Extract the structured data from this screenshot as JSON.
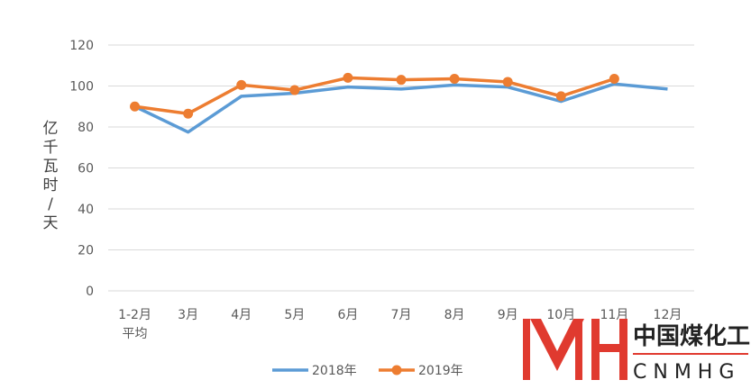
{
  "chart_data": {
    "type": "line",
    "categories": [
      "1-2月\n平均",
      "3月",
      "4月",
      "5月",
      "6月",
      "7月",
      "8月",
      "9月",
      "10月",
      "11月",
      "12月"
    ],
    "ylabel": "亿千瓦时/天",
    "ylim": [
      0,
      120
    ],
    "yticks": [
      0,
      20,
      40,
      60,
      80,
      100,
      120
    ],
    "grid": true,
    "legend_position": "bottom",
    "series": [
      {
        "name": "2018年",
        "color": "#5b9bd5",
        "markers": false,
        "values": [
          90,
          77.5,
          95,
          96.5,
          99.5,
          98.5,
          100.5,
          99.5,
          92.5,
          101,
          98.5
        ]
      },
      {
        "name": "2019年",
        "color": "#ed7d31",
        "markers": true,
        "values": [
          90,
          86.5,
          100.5,
          98,
          104,
          103,
          103.5,
          102,
          95,
          103.5,
          null
        ]
      }
    ]
  },
  "logo": {
    "chinese": "中国煤化工",
    "english": "CNMHG",
    "accent_color": "#e03a2f"
  }
}
